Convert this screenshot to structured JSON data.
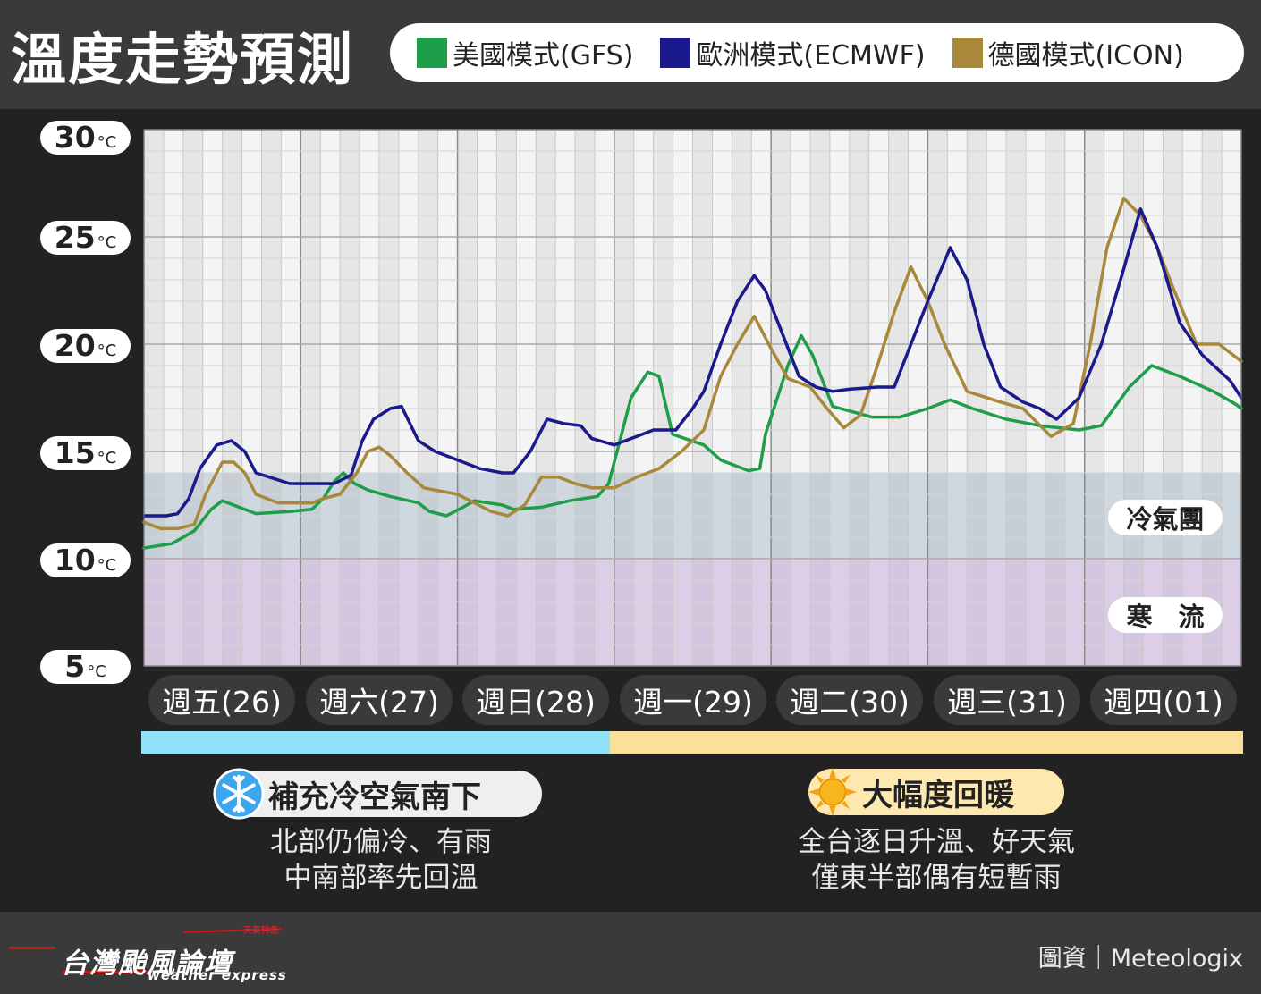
{
  "header": {
    "title": "溫度走勢預測"
  },
  "legend": [
    {
      "label": "美國模式(GFS)",
      "color": "#1f9e4a"
    },
    {
      "label": "歐洲模式(ECMWF)",
      "color": "#1a1a8c"
    },
    {
      "label": "德國模式(ICON)",
      "color": "#a8883a"
    }
  ],
  "y_ticks": [
    {
      "value": 30,
      "label": "30",
      "unit": "°C"
    },
    {
      "value": 25,
      "label": "25",
      "unit": "°C"
    },
    {
      "value": 20,
      "label": "20",
      "unit": "°C"
    },
    {
      "value": 15,
      "label": "15",
      "unit": "°C"
    },
    {
      "value": 10,
      "label": "10",
      "unit": "°C"
    },
    {
      "value": 5,
      "label": "5",
      "unit": "°C"
    }
  ],
  "days": [
    "週五(26)",
    "週六(27)",
    "週日(28)",
    "週一(29)",
    "週二(30)",
    "週三(31)",
    "週四(01)"
  ],
  "zones": {
    "cold_air": "冷氣團",
    "cold_surge": "寒　流"
  },
  "periods": [
    {
      "tag": "補充冷空氣南下",
      "icon": "snowflake-icon",
      "line1": "北部仍偏冷、有雨",
      "line2": "中南部率先回溫"
    },
    {
      "tag": "大幅度回暖",
      "icon": "sun-icon",
      "line1": "全台逐日升溫、好天氣",
      "line2": "僅東半部偶有短暫雨"
    }
  ],
  "footer": {
    "logo": "台灣颱風論壇",
    "logo_sub": "weather express",
    "logo_small": "天氣特急",
    "credit": "圖資｜Meteologix"
  },
  "chart_data": {
    "type": "line",
    "ylim": [
      5,
      30
    ],
    "x_unit": "day index (0 = 週五(26) 00h)",
    "cold_air_range": [
      10,
      14
    ],
    "cold_surge_range": [
      5,
      10
    ],
    "series": [
      {
        "name": "美國模式(GFS)",
        "color": "#1f9e4a",
        "points": [
          [
            0.0,
            10.5
          ],
          [
            0.25,
            10.7
          ],
          [
            0.45,
            11.3
          ],
          [
            0.6,
            12.3
          ],
          [
            0.7,
            12.7
          ],
          [
            0.85,
            12.4
          ],
          [
            1.0,
            12.1
          ],
          [
            1.3,
            12.2
          ],
          [
            1.5,
            12.3
          ],
          [
            1.6,
            12.8
          ],
          [
            1.7,
            13.6
          ],
          [
            1.78,
            14.0
          ],
          [
            1.88,
            13.5
          ],
          [
            2.0,
            13.2
          ],
          [
            2.2,
            12.9
          ],
          [
            2.45,
            12.6
          ],
          [
            2.55,
            12.2
          ],
          [
            2.7,
            12.0
          ],
          [
            2.85,
            12.4
          ],
          [
            2.95,
            12.7
          ],
          [
            3.2,
            12.5
          ],
          [
            3.3,
            12.3
          ],
          [
            3.55,
            12.4
          ],
          [
            3.8,
            12.7
          ],
          [
            4.05,
            12.9
          ],
          [
            4.15,
            13.5
          ],
          [
            4.25,
            15.5
          ],
          [
            4.35,
            17.5
          ],
          [
            4.5,
            18.7
          ],
          [
            4.6,
            18.5
          ],
          [
            4.72,
            15.8
          ],
          [
            5.0,
            15.3
          ],
          [
            5.15,
            14.6
          ],
          [
            5.4,
            14.1
          ],
          [
            5.5,
            14.2
          ],
          [
            5.55,
            15.8
          ],
          [
            5.75,
            19.0
          ],
          [
            5.87,
            20.4
          ],
          [
            5.97,
            19.5
          ],
          [
            6.15,
            17.1
          ],
          [
            6.5,
            16.6
          ],
          [
            6.75,
            16.6
          ],
          [
            7.0,
            17.0
          ],
          [
            7.2,
            17.4
          ],
          [
            7.4,
            17.0
          ],
          [
            7.7,
            16.5
          ],
          [
            8.0,
            16.2
          ],
          [
            8.35,
            16.0
          ],
          [
            8.55,
            16.2
          ],
          [
            8.8,
            18.0
          ],
          [
            9.0,
            19.0
          ],
          [
            9.25,
            18.5
          ],
          [
            9.55,
            17.8
          ],
          [
            9.75,
            17.2
          ],
          [
            9.8,
            17.0
          ]
        ]
      },
      {
        "name": "歐洲模式(ECMWF)",
        "color": "#1a1a8c",
        "points": [
          [
            0.0,
            12.0
          ],
          [
            0.2,
            12.0
          ],
          [
            0.3,
            12.1
          ],
          [
            0.4,
            12.8
          ],
          [
            0.5,
            14.2
          ],
          [
            0.65,
            15.3
          ],
          [
            0.78,
            15.5
          ],
          [
            0.9,
            15.0
          ],
          [
            1.0,
            14.0
          ],
          [
            1.3,
            13.5
          ],
          [
            1.5,
            13.5
          ],
          [
            1.7,
            13.5
          ],
          [
            1.85,
            13.9
          ],
          [
            1.95,
            15.5
          ],
          [
            2.05,
            16.5
          ],
          [
            2.2,
            17.0
          ],
          [
            2.3,
            17.1
          ],
          [
            2.45,
            15.5
          ],
          [
            2.6,
            15.0
          ],
          [
            2.85,
            14.5
          ],
          [
            3.0,
            14.2
          ],
          [
            3.2,
            14.0
          ],
          [
            3.3,
            14.0
          ],
          [
            3.45,
            15.0
          ],
          [
            3.6,
            16.5
          ],
          [
            3.75,
            16.3
          ],
          [
            3.9,
            16.2
          ],
          [
            4.0,
            15.6
          ],
          [
            4.2,
            15.3
          ],
          [
            4.4,
            15.7
          ],
          [
            4.55,
            16.0
          ],
          [
            4.75,
            16.0
          ],
          [
            4.9,
            17.0
          ],
          [
            5.0,
            17.8
          ],
          [
            5.15,
            20.0
          ],
          [
            5.3,
            22.0
          ],
          [
            5.45,
            23.2
          ],
          [
            5.55,
            22.5
          ],
          [
            5.7,
            20.5
          ],
          [
            5.85,
            18.5
          ],
          [
            6.0,
            18.0
          ],
          [
            6.15,
            17.8
          ],
          [
            6.3,
            17.9
          ],
          [
            6.55,
            18.0
          ],
          [
            6.7,
            18.0
          ],
          [
            6.85,
            20.0
          ],
          [
            7.0,
            22.0
          ],
          [
            7.2,
            24.5
          ],
          [
            7.35,
            23.0
          ],
          [
            7.5,
            20.0
          ],
          [
            7.65,
            18.0
          ],
          [
            7.85,
            17.3
          ],
          [
            8.0,
            17.0
          ],
          [
            8.15,
            16.5
          ],
          [
            8.35,
            17.5
          ],
          [
            8.55,
            20.0
          ],
          [
            8.75,
            23.5
          ],
          [
            8.9,
            26.3
          ],
          [
            9.05,
            24.5
          ],
          [
            9.25,
            21.0
          ],
          [
            9.45,
            19.5
          ],
          [
            9.7,
            18.3
          ],
          [
            9.8,
            17.5
          ]
        ]
      },
      {
        "name": "德國模式(ICON)",
        "color": "#a8883a",
        "points": [
          [
            0.0,
            11.7
          ],
          [
            0.15,
            11.4
          ],
          [
            0.3,
            11.4
          ],
          [
            0.45,
            11.6
          ],
          [
            0.55,
            13.0
          ],
          [
            0.7,
            14.5
          ],
          [
            0.8,
            14.5
          ],
          [
            0.9,
            14.0
          ],
          [
            1.0,
            13.0
          ],
          [
            1.2,
            12.6
          ],
          [
            1.5,
            12.6
          ],
          [
            1.6,
            12.8
          ],
          [
            1.75,
            13.0
          ],
          [
            1.9,
            14.0
          ],
          [
            2.0,
            15.0
          ],
          [
            2.1,
            15.2
          ],
          [
            2.2,
            14.8
          ],
          [
            2.35,
            14.0
          ],
          [
            2.5,
            13.3
          ],
          [
            2.8,
            13.0
          ],
          [
            2.95,
            12.6
          ],
          [
            3.1,
            12.2
          ],
          [
            3.25,
            12.0
          ],
          [
            3.4,
            12.5
          ],
          [
            3.55,
            13.8
          ],
          [
            3.7,
            13.8
          ],
          [
            3.85,
            13.5
          ],
          [
            4.0,
            13.3
          ],
          [
            4.2,
            13.3
          ],
          [
            4.4,
            13.8
          ],
          [
            4.6,
            14.2
          ],
          [
            4.8,
            15.0
          ],
          [
            5.0,
            16.0
          ],
          [
            5.15,
            18.5
          ],
          [
            5.3,
            20.0
          ],
          [
            5.45,
            21.3
          ],
          [
            5.6,
            19.8
          ],
          [
            5.75,
            18.4
          ],
          [
            5.95,
            18.0
          ],
          [
            6.1,
            17.0
          ],
          [
            6.25,
            16.1
          ],
          [
            6.4,
            16.7
          ],
          [
            6.55,
            19.0
          ],
          [
            6.7,
            21.5
          ],
          [
            6.85,
            23.6
          ],
          [
            7.0,
            22.0
          ],
          [
            7.15,
            20.0
          ],
          [
            7.35,
            17.8
          ],
          [
            7.65,
            17.3
          ],
          [
            7.85,
            17.0
          ],
          [
            8.1,
            15.7
          ],
          [
            8.3,
            16.3
          ],
          [
            8.45,
            20.0
          ],
          [
            8.6,
            24.5
          ],
          [
            8.75,
            26.8
          ],
          [
            8.9,
            26.0
          ],
          [
            9.05,
            24.5
          ],
          [
            9.2,
            22.5
          ],
          [
            9.4,
            20.0
          ],
          [
            9.6,
            20.0
          ],
          [
            9.8,
            19.2
          ]
        ]
      }
    ],
    "series_note": "x runs 0..7 days; points above beyond 7 are rescaled below"
  }
}
